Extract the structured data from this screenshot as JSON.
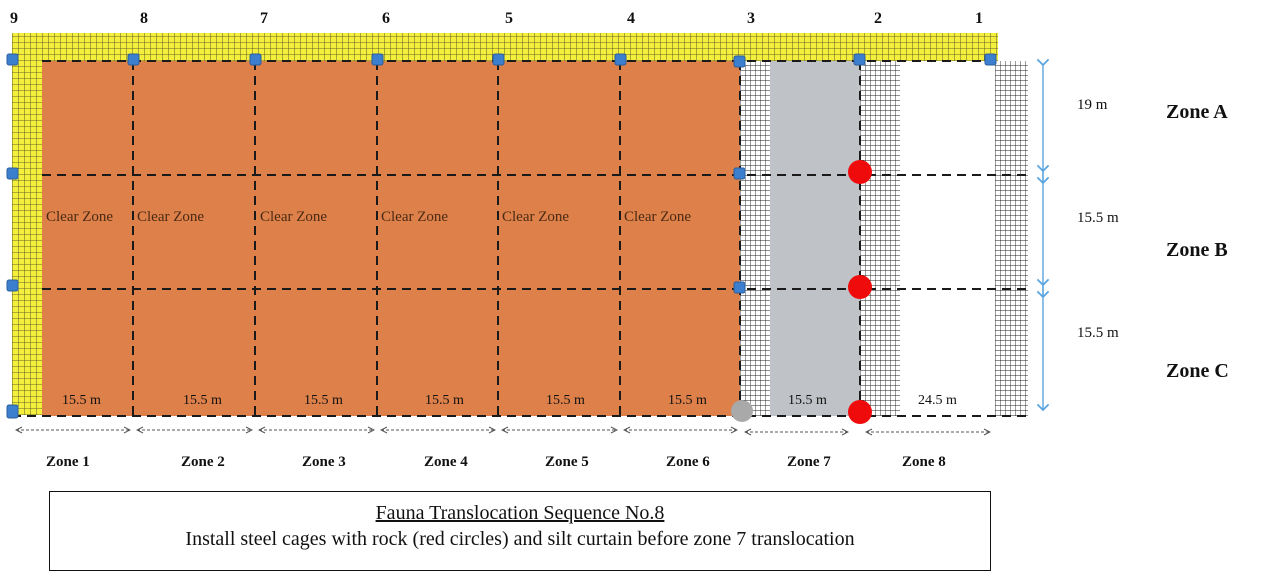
{
  "columns": [
    "9",
    "8",
    "7",
    "6",
    "5",
    "4",
    "3",
    "2",
    "1"
  ],
  "zones_h": [
    "Zone 1",
    "Zone 2",
    "Zone 3",
    "Zone 4",
    "Zone 5",
    "Zone 6",
    "Zone 7",
    "Zone 8"
  ],
  "widths": [
    "15.5 m",
    "15.5 m",
    "15.5 m",
    "15.5 m",
    "15.5 m",
    "15.5 m",
    "15.5 m",
    "24.5 m"
  ],
  "clear_zone_label": "Clear Zone",
  "zones_v": [
    "Zone A",
    "Zone B",
    "Zone C"
  ],
  "heights": [
    "19 m",
    "15.5 m",
    "15.5 m"
  ],
  "caption": {
    "title": "Fauna Translocation Sequence No.8",
    "text": "Install steel cages with rock (red circles) and silt curtain before zone 7 translocation"
  },
  "colors": {
    "clear_zone": "#de8049",
    "yellow_mesh": "#f4ee3c",
    "grey_zone": "#bfc2c6",
    "red_marker": "#ef0b0b",
    "blue_marker": "#3d7fcf",
    "dimension_arrow": "#5aa5df"
  },
  "legend_markers": {
    "red": "steel cages with rock",
    "grey": "grey circle",
    "blue": "blue square"
  }
}
